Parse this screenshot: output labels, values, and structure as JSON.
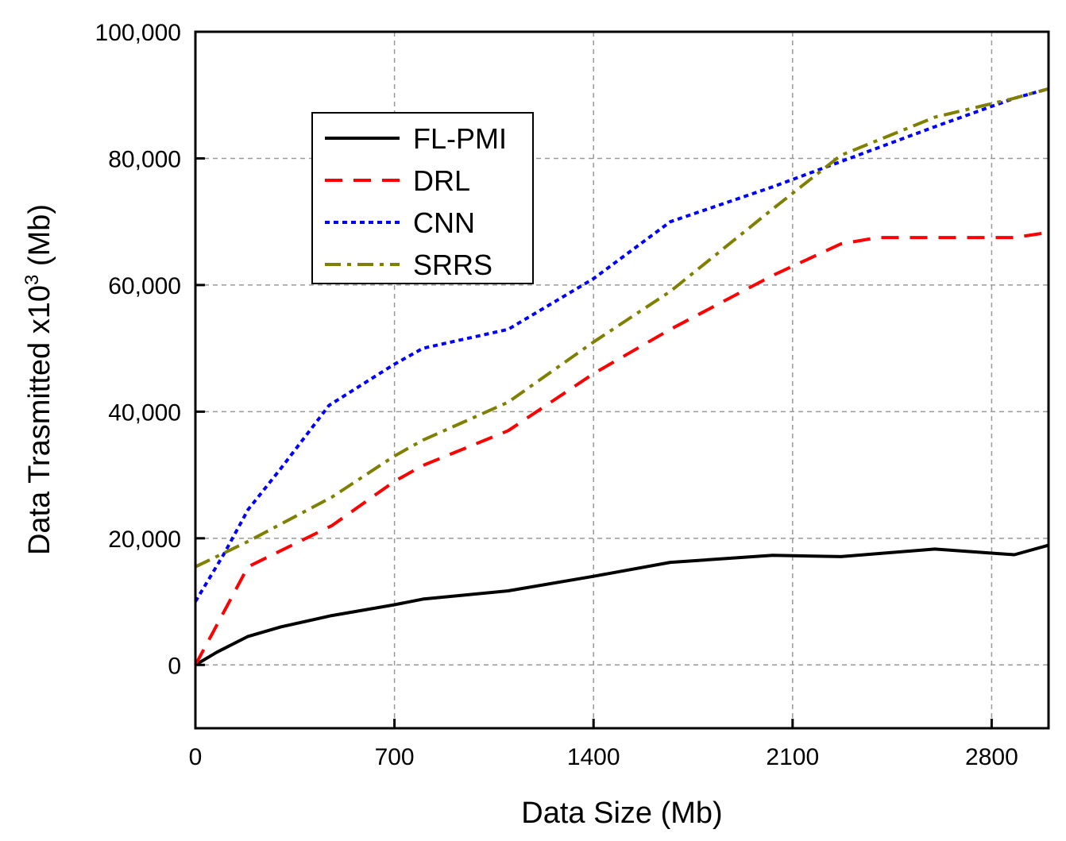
{
  "chart_data": {
    "type": "line",
    "title": "",
    "xlabel": "Data Size (Mb)",
    "ylabel_main": "Data Trasmitted x10",
    "ylabel_sup": "3",
    "ylabel_unit": " (Mb)",
    "xlim": [
      0,
      3000
    ],
    "ylim": [
      -10000,
      100000
    ],
    "xticks": [
      0,
      700,
      1400,
      2100,
      2800
    ],
    "xtick_labels": [
      "0",
      "700",
      "1400",
      "2100",
      "2800"
    ],
    "yticks": [
      0,
      20000,
      40000,
      60000,
      80000,
      100000
    ],
    "ytick_labels": [
      "0",
      "20,000",
      "40,000",
      "60,000",
      "80,000",
      "100,000"
    ],
    "grid": true,
    "legend_position": "top-left",
    "series": [
      {
        "name": "FL-PMI",
        "color": "#000000",
        "dash": "solid",
        "x": [
          0,
          75,
          185,
          300,
          480,
          700,
          800,
          1100,
          1400,
          1670,
          2030,
          2270,
          2600,
          2880,
          3000
        ],
        "y": [
          0,
          2000,
          4500,
          6000,
          7800,
          9500,
          10400,
          11700,
          14000,
          16200,
          17300,
          17100,
          18300,
          17400,
          18900
        ]
      },
      {
        "name": "DRL",
        "color": "#ff0000",
        "dash": "dash",
        "x": [
          0,
          60,
          185,
          480,
          700,
          800,
          1100,
          1400,
          1670,
          2030,
          2270,
          2400,
          2600,
          2880,
          3000
        ],
        "y": [
          0,
          5000,
          15500,
          22000,
          29000,
          31500,
          37000,
          46000,
          53000,
          61500,
          66500,
          67500,
          67500,
          67500,
          68300
        ]
      },
      {
        "name": "CNN",
        "color": "#0000ff",
        "dash": "dot",
        "x": [
          0,
          100,
          185,
          300,
          470,
          700,
          800,
          1100,
          1400,
          1670,
          2030,
          2270,
          2600,
          2880,
          3000
        ],
        "y": [
          10000,
          17500,
          24500,
          31000,
          41000,
          47500,
          50000,
          53000,
          61000,
          70000,
          75500,
          79500,
          85000,
          89500,
          91000
        ]
      },
      {
        "name": "SRRS",
        "color": "#808000",
        "dash": "dashdot",
        "x": [
          0,
          185,
          480,
          700,
          800,
          1100,
          1400,
          1670,
          2030,
          2270,
          2600,
          2880,
          3000
        ],
        "y": [
          15500,
          19500,
          26500,
          33000,
          35500,
          41500,
          51000,
          59000,
          72000,
          80500,
          86500,
          89500,
          91000
        ]
      }
    ]
  }
}
